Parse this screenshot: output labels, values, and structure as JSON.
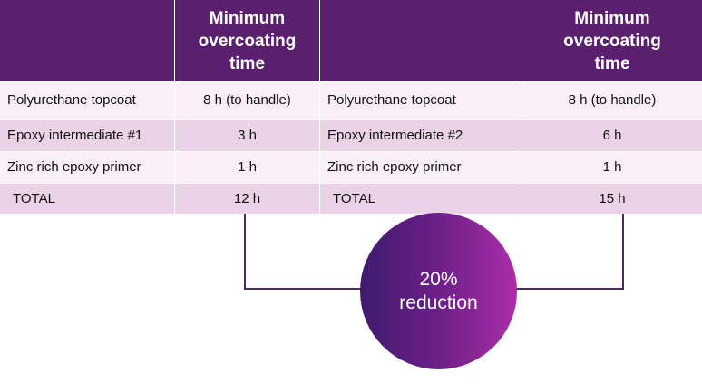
{
  "header": {
    "left_col1": "",
    "left_col2": [
      "Minimum",
      "overcoating",
      "time"
    ],
    "right_col1": "",
    "right_col2": [
      "Minimum",
      "overcoating",
      "time"
    ]
  },
  "left_table": {
    "rows": [
      {
        "layer": "Polyurethane topcoat",
        "time": "8 h (to handle)"
      },
      {
        "layer": "Epoxy intermediate #1",
        "time": "3 h"
      },
      {
        "layer": "Zinc rich epoxy primer",
        "time": "1 h"
      },
      {
        "layer": "TOTAL",
        "time": "12 h"
      }
    ]
  },
  "right_table": {
    "rows": [
      {
        "layer": "Polyurethane topcoat",
        "time": "8 h (to handle)"
      },
      {
        "layer": "Epoxy intermediate #2",
        "time": "6 h"
      },
      {
        "layer": "Zinc rich epoxy primer",
        "time": "1 h"
      },
      {
        "layer": "TOTAL",
        "time": "15 h"
      }
    ]
  },
  "badge": {
    "line1": "20%",
    "line2": "reduction"
  },
  "colors": {
    "header_bg": "#5a1f6e",
    "row_light": "#f9eef9",
    "row_dark": "#ebd3e7",
    "connector": "#4d2763",
    "circle_start": "#3f1b6e",
    "circle_end": "#ab2ea8"
  }
}
